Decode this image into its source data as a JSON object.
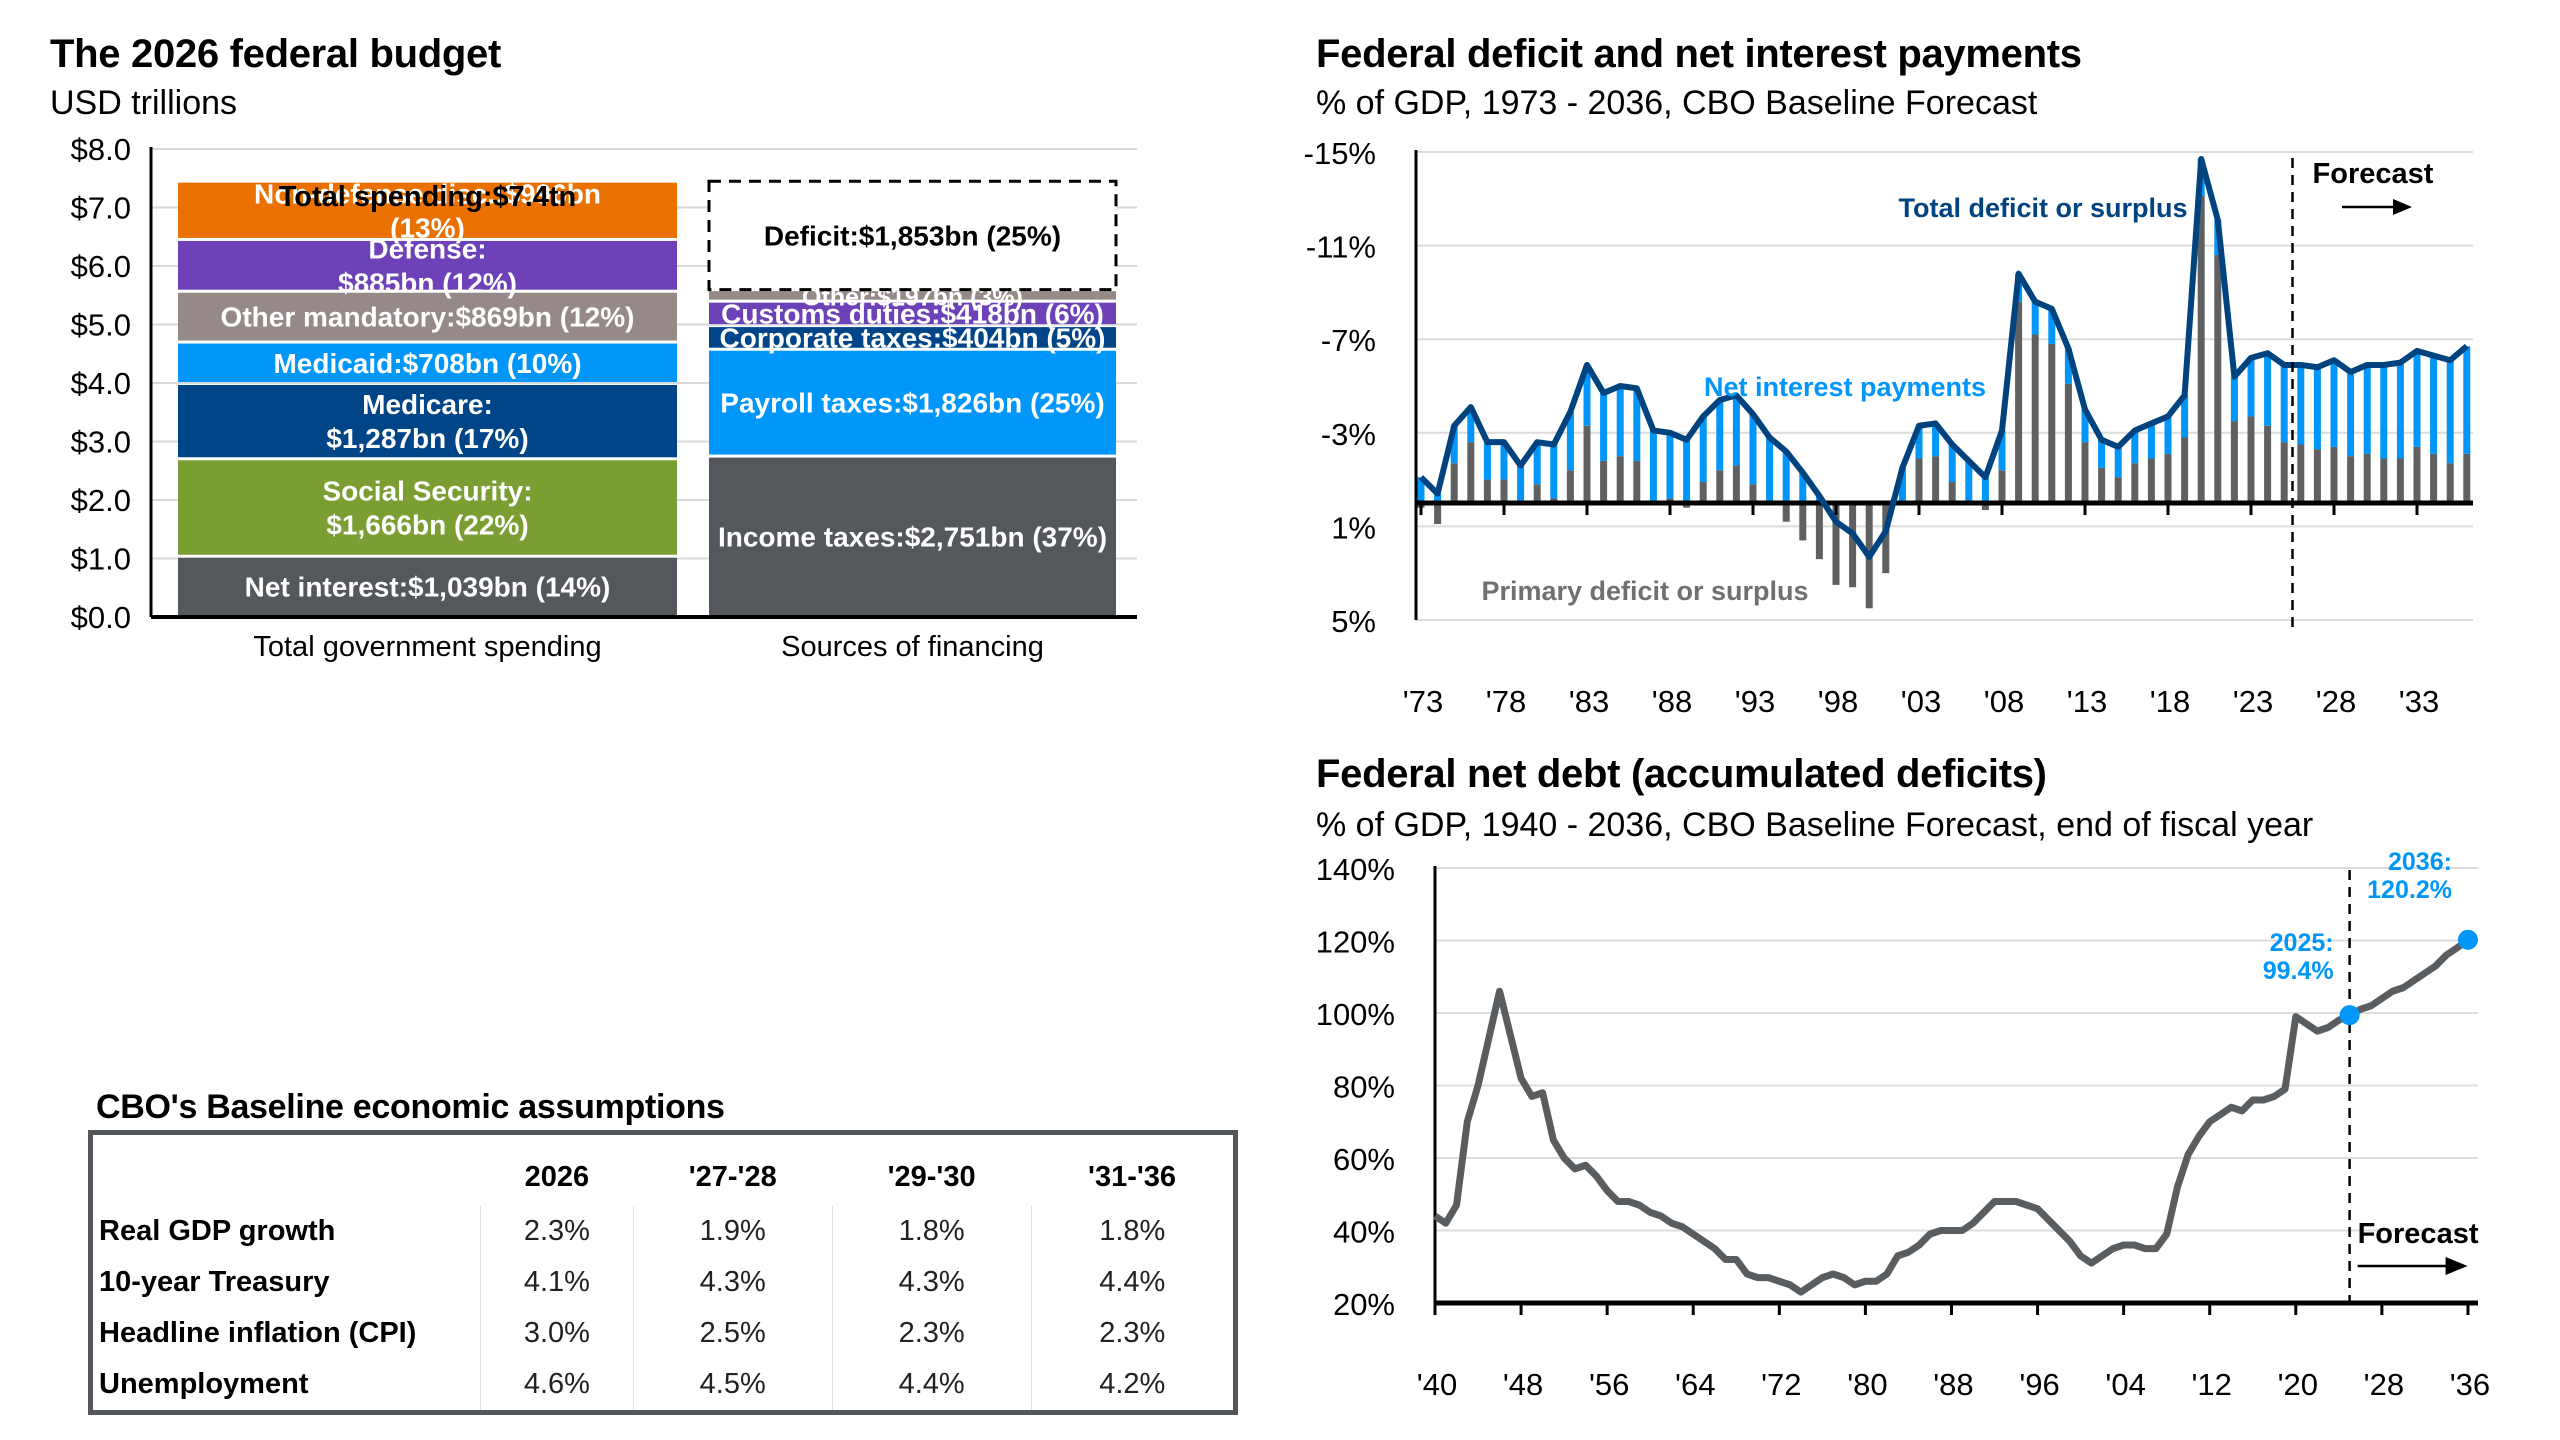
{
  "budget": {
    "title": "The 2026 federal budget",
    "subtitle": "USD trillions",
    "total_label": "Total spending:$7.4tn",
    "colors": {
      "net_interest": "#54575b",
      "social_security": "#7a9e32",
      "medicare": "#004587",
      "medicaid": "#0096fa",
      "other_mandatory": "#968a88",
      "defense": "#6d41b8",
      "non_defense": "#ea7100",
      "income_taxes": "#54575b",
      "payroll_taxes": "#0096fa",
      "corporate_taxes": "#004587",
      "customs_duties": "#6d41b8",
      "other": "#968a88",
      "deficit": "#ffffff"
    }
  },
  "chart_data": [
    {
      "type": "bar",
      "stacked": true,
      "title": "The 2026 federal budget",
      "ylabel": "USD trillions",
      "ylim": [
        0,
        8
      ],
      "yticks": [
        "$0.0",
        "$1.0",
        "$2.0",
        "$3.0",
        "$4.0",
        "$5.0",
        "$6.0",
        "$7.0",
        "$8.0"
      ],
      "ytick_values": [
        0,
        1,
        2,
        3,
        4,
        5,
        6,
        7,
        8
      ],
      "categories": [
        "Total government spending",
        "Sources of financing"
      ],
      "grid": true,
      "annotation": "Total spending:$7.4tn",
      "stacks": [
        {
          "category": "Total government spending",
          "segments": [
            {
              "key": "net_interest",
              "value_bn": 1039,
              "label": [
                "Net interest:$1,039bn (14%)"
              ]
            },
            {
              "key": "social_security",
              "value_bn": 1666,
              "label": [
                "Social Security:",
                "$1,666bn (22%)"
              ]
            },
            {
              "key": "medicare",
              "value_bn": 1287,
              "label": [
                "Medicare:",
                "$1,287bn (17%)"
              ]
            },
            {
              "key": "medicaid",
              "value_bn": 708,
              "label": [
                "Medicaid:$708bn (10%)"
              ]
            },
            {
              "key": "other_mandatory",
              "value_bn": 869,
              "label": [
                "Other mandatory:$869bn (12%)"
              ]
            },
            {
              "key": "defense",
              "value_bn": 885,
              "label": [
                "Defense:",
                "$885bn (12%)"
              ]
            },
            {
              "key": "non_defense",
              "value_bn": 996,
              "label": [
                "Non-defense disc.:$996bn",
                "(13%)"
              ]
            }
          ]
        },
        {
          "category": "Sources of financing",
          "segments": [
            {
              "key": "income_taxes",
              "value_bn": 2751,
              "label": [
                "Income taxes:$2,751bn (37%)"
              ]
            },
            {
              "key": "payroll_taxes",
              "value_bn": 1826,
              "label": [
                "Payroll taxes:$1,826bn (25%)"
              ]
            },
            {
              "key": "corporate_taxes",
              "value_bn": 404,
              "label": [
                "Corporate taxes:$404bn (5%)"
              ]
            },
            {
              "key": "customs_duties",
              "value_bn": 418,
              "label": [
                "Customs duties:$418bn (6%)"
              ]
            },
            {
              "key": "other",
              "value_bn": 197,
              "label": [
                "Other:$197bn (3%)"
              ]
            },
            {
              "key": "deficit",
              "value_bn": 1853,
              "label": [
                "Deficit:$1,853bn (25%)"
              ],
              "dashed": true
            }
          ]
        }
      ]
    },
    {
      "type": "bar",
      "subtype": "bar+line",
      "title": "Federal deficit and net interest payments",
      "subtitle": "% of GDP, 1973 - 2036, CBO Baseline Forecast",
      "ylim": [
        5,
        -15
      ],
      "yticks": [
        "-15%",
        "-11%",
        "-7%",
        "-3%",
        "1%",
        "5%"
      ],
      "ytick_values": [
        -15,
        -11,
        -7,
        -3,
        1,
        5
      ],
      "xticks": [
        "'73",
        "'78",
        "'83",
        "'88",
        "'93",
        "'98",
        "'03",
        "'08",
        "'13",
        "'18",
        "'23",
        "'28",
        "'33"
      ],
      "xtick_years": [
        1973,
        1978,
        1983,
        1988,
        1993,
        1998,
        2003,
        2008,
        2013,
        2018,
        2023,
        2028,
        2033
      ],
      "grid": true,
      "forecast_start": 2025.5,
      "forecast_label": "Forecast",
      "series_labels": {
        "total": "Total deficit or surplus",
        "interest": "Net interest payments",
        "primary": "Primary deficit or surplus"
      },
      "colors": {
        "total": "#00437f",
        "interest": "#0096fa",
        "primary": "#5f6062"
      },
      "x": [
        1973,
        1974,
        1975,
        1976,
        1977,
        1978,
        1979,
        1980,
        1981,
        1982,
        1983,
        1984,
        1985,
        1986,
        1987,
        1988,
        1989,
        1990,
        1991,
        1992,
        1993,
        1994,
        1995,
        1996,
        1997,
        1998,
        1999,
        2000,
        2001,
        2002,
        2003,
        2004,
        2005,
        2006,
        2007,
        2008,
        2009,
        2010,
        2011,
        2012,
        2013,
        2014,
        2015,
        2016,
        2017,
        2018,
        2019,
        2020,
        2021,
        2022,
        2023,
        2024,
        2025,
        2026,
        2027,
        2028,
        2029,
        2030,
        2031,
        2032,
        2033,
        2034,
        2035,
        2036
      ],
      "series": [
        {
          "name": "Total deficit or surplus",
          "values": [
            -1.1,
            -0.4,
            -3.3,
            -4.1,
            -2.6,
            -2.6,
            -1.6,
            -2.6,
            -2.5,
            -3.9,
            -5.9,
            -4.7,
            -5.0,
            -4.9,
            -3.1,
            -3.0,
            -2.7,
            -3.7,
            -4.4,
            -4.6,
            -3.8,
            -2.8,
            -2.2,
            -1.3,
            -0.3,
            0.8,
            1.3,
            2.3,
            1.2,
            -1.5,
            -3.3,
            -3.4,
            -2.5,
            -1.8,
            -1.1,
            -3.1,
            -9.8,
            -8.6,
            -8.3,
            -6.6,
            -4.0,
            -2.7,
            -2.4,
            -3.1,
            -3.4,
            -3.7,
            -4.6,
            -14.7,
            -12.1,
            -5.4,
            -6.2,
            -6.4,
            -5.9,
            -5.9,
            -5.8,
            -6.1,
            -5.6,
            -5.9,
            -5.9,
            -6.0,
            -6.5,
            -6.3,
            -6.1,
            -6.7
          ]
        },
        {
          "name": "Primary deficit or surplus",
          "values": [
            0.2,
            0.9,
            -1.7,
            -2.6,
            -1.0,
            -1.0,
            0.1,
            -0.8,
            -0.2,
            -1.4,
            -3.3,
            -1.8,
            -2.0,
            -1.8,
            -0.1,
            -0.2,
            0.2,
            -0.9,
            -1.4,
            -1.6,
            -0.8,
            0.1,
            0.8,
            1.6,
            2.4,
            3.5,
            3.6,
            4.5,
            3.0,
            -0.1,
            -1.9,
            -2.0,
            -0.9,
            -0.1,
            0.3,
            -1.4,
            -8.6,
            -7.2,
            -6.8,
            -5.1,
            -2.6,
            -1.5,
            -1.1,
            -1.7,
            -1.9,
            -2.1,
            -2.8,
            -13.1,
            -10.6,
            -3.5,
            -3.7,
            -3.3,
            -2.6,
            -2.5,
            -2.3,
            -2.4,
            -2.0,
            -2.1,
            -1.9,
            -1.9,
            -2.4,
            -2.1,
            -1.7,
            -2.1
          ]
        }
      ]
    },
    {
      "type": "line",
      "title": "Federal net debt (accumulated deficits)",
      "subtitle": "% of GDP, 1940 - 2036, CBO Baseline Forecast, end of fiscal year",
      "ylim": [
        20,
        140
      ],
      "yticks": [
        "20%",
        "40%",
        "60%",
        "80%",
        "100%",
        "120%",
        "140%"
      ],
      "ytick_values": [
        20,
        40,
        60,
        80,
        100,
        120,
        140
      ],
      "xticks": [
        "'40",
        "'48",
        "'56",
        "'64",
        "'72",
        "'80",
        "'88",
        "'96",
        "'04",
        "'12",
        "'20",
        "'28",
        "'36"
      ],
      "xtick_years": [
        1940,
        1948,
        1956,
        1964,
        1972,
        1980,
        1988,
        1996,
        2004,
        2012,
        2020,
        2028,
        2036
      ],
      "grid": true,
      "forecast_start": 2025,
      "forecast_label": "Forecast",
      "colors": {
        "line": "#5a5d60",
        "highlight": "#0096fa"
      },
      "annotations": [
        {
          "year": 2025,
          "value": 99.4,
          "label": [
            "2025:",
            "99.4%"
          ]
        },
        {
          "year": 2036,
          "value": 120.2,
          "label": [
            "2036:",
            "120.2%"
          ]
        }
      ],
      "x_start": 1940,
      "series": [
        {
          "name": "Federal net debt",
          "values": [
            44,
            42,
            47,
            70,
            80,
            93,
            106,
            94,
            82,
            77,
            78,
            65,
            60,
            57,
            58,
            55,
            51,
            48,
            48,
            47,
            45,
            44,
            42,
            41,
            39,
            37,
            35,
            32,
            32,
            28,
            27,
            27,
            26,
            25,
            23,
            25,
            27,
            28,
            27,
            25,
            26,
            26,
            28,
            33,
            34,
            36,
            39,
            40,
            40,
            40,
            42,
            45,
            48,
            48,
            48,
            47,
            46,
            43,
            40,
            37,
            33,
            31,
            33,
            35,
            36,
            36,
            35,
            35,
            39,
            52,
            61,
            66,
            70,
            72,
            74,
            73,
            76,
            76,
            77,
            79,
            99,
            97,
            95,
            96,
            98,
            99.4,
            101,
            102,
            104,
            106,
            107,
            109,
            111,
            113,
            116,
            118,
            120.2
          ]
        }
      ]
    }
  ],
  "deficit_chart": {
    "title": "Federal deficit and net interest payments",
    "subtitle": "% of GDP, 1973 - 2036, CBO Baseline Forecast"
  },
  "debt_chart": {
    "title": "Federal net debt (accumulated deficits)",
    "subtitle": "% of GDP, 1940 - 2036, CBO Baseline Forecast, end of fiscal year"
  },
  "assumptions": {
    "title": "CBO's Baseline economic assumptions",
    "columns": [
      "2026",
      "'27-'28",
      "'29-'30",
      "'31-'36"
    ],
    "rows": [
      {
        "label": "Real GDP growth",
        "values": [
          "2.3%",
          "1.9%",
          "1.8%",
          "1.8%"
        ]
      },
      {
        "label": "10-year Treasury",
        "values": [
          "4.1%",
          "4.3%",
          "4.3%",
          "4.4%"
        ]
      },
      {
        "label": "Headline inflation (CPI)",
        "values": [
          "3.0%",
          "2.5%",
          "2.3%",
          "2.3%"
        ]
      },
      {
        "label": "Unemployment",
        "values": [
          "4.6%",
          "4.5%",
          "4.4%",
          "4.2%"
        ]
      }
    ]
  }
}
